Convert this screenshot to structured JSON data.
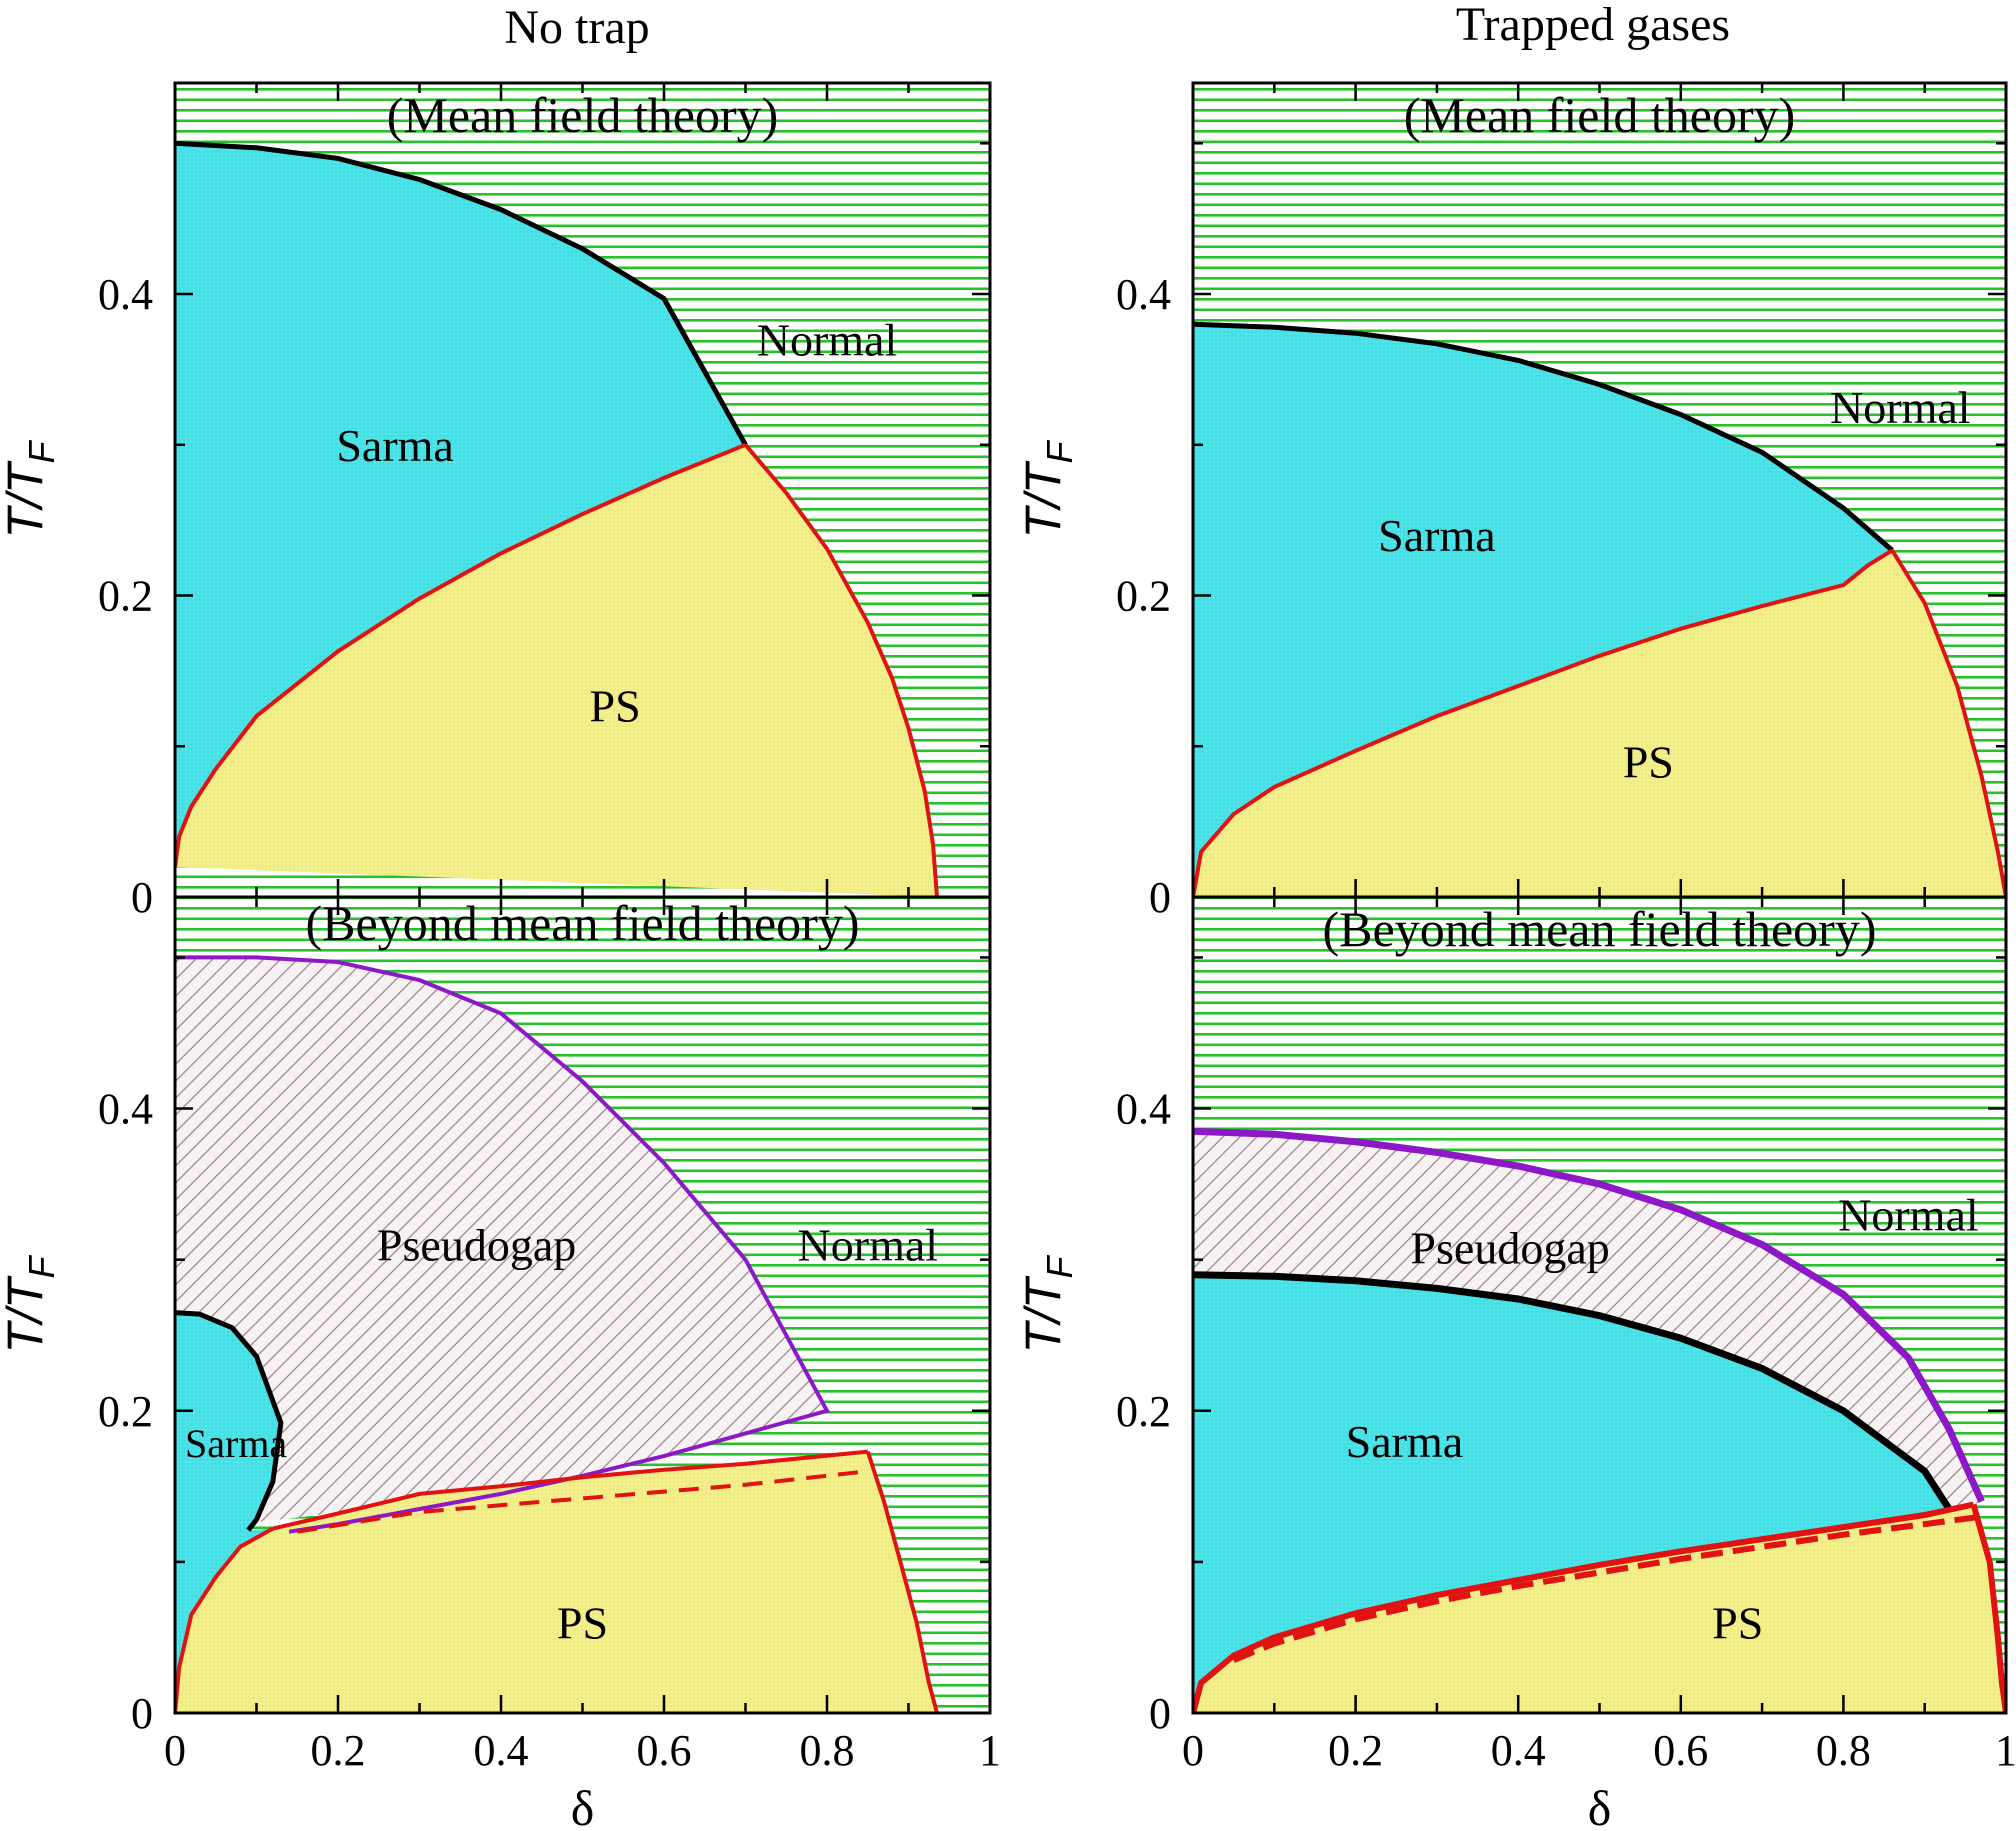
{
  "figure": {
    "column_titles": [
      "No trap",
      "Trapped gases"
    ]
  },
  "colors": {
    "normal_green": "#27c22a",
    "sarma_cyan": "#44e0e6",
    "ps_yellow": "#f2ef8c",
    "pseudogap_hatch": "#9b7f86",
    "red_line": "#e01212",
    "purple_line": "#8c18c8",
    "black_line": "#000000"
  },
  "chart_data": [
    {
      "type": "area",
      "panel": "top-left",
      "title": "(Mean field theory)",
      "xlabel": "",
      "ylabel": "T/T_F",
      "ylabel_main": "T/T",
      "ylabel_sub": "F",
      "xlim": [
        0,
        1
      ],
      "ylim": [
        0,
        0.54
      ],
      "yticks": [
        "0",
        "0.2",
        "0.4"
      ],
      "xticks": [],
      "region_labels": [
        {
          "text": "Normal",
          "x": 0.8,
          "y": 0.37
        },
        {
          "text": "Sarma",
          "x": 0.27,
          "y": 0.3
        },
        {
          "text": "PS",
          "x": 0.54,
          "y": 0.127
        }
      ],
      "series": [
        {
          "name": "black",
          "style": "solid",
          "x": [
            0,
            0.1,
            0.2,
            0.3,
            0.4,
            0.5,
            0.6,
            0.7
          ],
          "y": [
            0.5,
            0.497,
            0.49,
            0.476,
            0.456,
            0.43,
            0.397,
            0.3
          ]
        },
        {
          "name": "red-lower",
          "style": "solid",
          "x": [
            0,
            0.005,
            0.02,
            0.05,
            0.1,
            0.2,
            0.3,
            0.4,
            0.5,
            0.6,
            0.7
          ],
          "y": [
            0.02,
            0.04,
            0.06,
            0.085,
            0.12,
            0.163,
            0.198,
            0.228,
            0.254,
            0.278,
            0.3
          ]
        },
        {
          "name": "red-right",
          "style": "solid",
          "x": [
            0.7,
            0.75,
            0.8,
            0.85,
            0.88,
            0.9,
            0.92,
            0.93,
            0.935
          ],
          "y": [
            0.3,
            0.268,
            0.231,
            0.182,
            0.145,
            0.112,
            0.07,
            0.035,
            0
          ]
        }
      ]
    },
    {
      "type": "area",
      "panel": "top-right",
      "title": "(Mean field theory)",
      "xlabel": "",
      "ylabel": "T/T_F",
      "ylabel_main": "T/T",
      "ylabel_sub": "F",
      "xlim": [
        0,
        1
      ],
      "ylim": [
        0,
        0.54
      ],
      "yticks": [
        "0",
        "0.2",
        "0.4"
      ],
      "xticks": [],
      "region_labels": [
        {
          "text": "Normal",
          "x": 0.87,
          "y": 0.325
        },
        {
          "text": "Sarma",
          "x": 0.3,
          "y": 0.24
        },
        {
          "text": "PS",
          "x": 0.56,
          "y": 0.09
        }
      ],
      "series": [
        {
          "name": "black",
          "style": "solid",
          "x": [
            0,
            0.1,
            0.2,
            0.3,
            0.4,
            0.5,
            0.6,
            0.7,
            0.8,
            0.86
          ],
          "y": [
            0.38,
            0.378,
            0.374,
            0.367,
            0.356,
            0.34,
            0.32,
            0.295,
            0.258,
            0.23
          ]
        },
        {
          "name": "red-lower",
          "style": "solid",
          "x": [
            0,
            0.01,
            0.05,
            0.1,
            0.2,
            0.3,
            0.4,
            0.5,
            0.6,
            0.7,
            0.8,
            0.83,
            0.86
          ],
          "y": [
            0,
            0.03,
            0.055,
            0.073,
            0.097,
            0.12,
            0.14,
            0.16,
            0.178,
            0.193,
            0.207,
            0.22,
            0.23
          ]
        },
        {
          "name": "red-right",
          "style": "solid",
          "x": [
            0.86,
            0.9,
            0.94,
            0.97,
            0.99,
            1.0
          ],
          "y": [
            0.23,
            0.195,
            0.14,
            0.08,
            0.03,
            0
          ]
        }
      ]
    },
    {
      "type": "area",
      "panel": "bottom-left",
      "title": "(Beyond mean field theory)",
      "xlabel": "δ",
      "ylabel": "T/T_F",
      "ylabel_main": "T/T",
      "ylabel_sub": "F",
      "xlim": [
        0,
        1
      ],
      "ylim": [
        0,
        0.54
      ],
      "yticks": [
        "0",
        "0.2",
        "0.4"
      ],
      "xticks": [
        "0",
        "0.2",
        "0.4",
        "0.6",
        "0.8",
        "1"
      ],
      "region_labels": [
        {
          "text": "Normal",
          "x": 0.85,
          "y": 0.31
        },
        {
          "text": "Pseudogap",
          "x": 0.37,
          "y": 0.31
        },
        {
          "text": "Sarma",
          "x": 0.075,
          "y": 0.18
        },
        {
          "text": "PS",
          "x": 0.5,
          "y": 0.06
        }
      ],
      "series": [
        {
          "name": "purple",
          "style": "solid",
          "x": [
            0,
            0.1,
            0.2,
            0.3,
            0.4,
            0.5,
            0.6,
            0.7,
            0.8,
            0.7,
            0.6,
            0.5,
            0.4,
            0.3,
            0.2,
            0.14
          ],
          "y": [
            0.5,
            0.5,
            0.497,
            0.485,
            0.463,
            0.418,
            0.364,
            0.3,
            0.2,
            0.185,
            0.17,
            0.157,
            0.145,
            0.135,
            0.125,
            0.12
          ]
        },
        {
          "name": "black",
          "style": "solid",
          "x": [
            0,
            0.03,
            0.07,
            0.1,
            0.13,
            0.12,
            0.1,
            0.09
          ],
          "y": [
            0.265,
            0.264,
            0.255,
            0.236,
            0.192,
            0.153,
            0.128,
            0.121
          ]
        },
        {
          "name": "red-lower",
          "style": "solid",
          "x": [
            0,
            0.005,
            0.02,
            0.05,
            0.08,
            0.12
          ],
          "y": [
            0,
            0.03,
            0.065,
            0.09,
            0.11,
            0.122
          ]
        },
        {
          "name": "red-upper",
          "style": "solid",
          "x": [
            0.12,
            0.2,
            0.3,
            0.4,
            0.5,
            0.6,
            0.7,
            0.85
          ],
          "y": [
            0.122,
            0.132,
            0.145,
            0.15,
            0.156,
            0.161,
            0.165,
            0.173
          ]
        },
        {
          "name": "red-right",
          "style": "solid",
          "x": [
            0.85,
            0.87,
            0.89,
            0.91,
            0.925,
            0.935
          ],
          "y": [
            0.173,
            0.14,
            0.1,
            0.06,
            0.02,
            0
          ]
        },
        {
          "name": "red-dashed",
          "style": "dashed",
          "x": [
            0.15,
            0.3,
            0.5,
            0.7,
            0.85
          ],
          "y": [
            0.12,
            0.133,
            0.142,
            0.151,
            0.16
          ]
        }
      ]
    },
    {
      "type": "area",
      "panel": "bottom-right",
      "title": "(Beyond mean field theory)",
      "xlabel": "δ",
      "ylabel": "T/T_F",
      "ylabel_main": "T/T",
      "ylabel_sub": "F",
      "xlim": [
        0,
        1
      ],
      "ylim": [
        0,
        0.54
      ],
      "yticks": [
        "0",
        "0.2",
        "0.4"
      ],
      "xticks": [
        "0",
        "0.2",
        "0.4",
        "0.6",
        "0.8",
        "1"
      ],
      "region_labels": [
        {
          "text": "Normal",
          "x": 0.88,
          "y": 0.33
        },
        {
          "text": "Pseudogap",
          "x": 0.39,
          "y": 0.308
        },
        {
          "text": "Sarma",
          "x": 0.26,
          "y": 0.18
        },
        {
          "text": "PS",
          "x": 0.67,
          "y": 0.06
        }
      ],
      "series": [
        {
          "name": "purple",
          "style": "solid",
          "x": [
            0,
            0.1,
            0.2,
            0.3,
            0.4,
            0.5,
            0.6,
            0.7,
            0.8,
            0.88,
            0.93,
            0.97
          ],
          "y": [
            0.385,
            0.383,
            0.378,
            0.371,
            0.362,
            0.35,
            0.333,
            0.31,
            0.277,
            0.235,
            0.188,
            0.14
          ]
        },
        {
          "name": "black",
          "style": "solid",
          "x": [
            0,
            0.1,
            0.2,
            0.3,
            0.4,
            0.5,
            0.6,
            0.7,
            0.8,
            0.9,
            0.93
          ],
          "y": [
            0.29,
            0.289,
            0.286,
            0.281,
            0.274,
            0.263,
            0.248,
            0.228,
            0.2,
            0.16,
            0.135
          ]
        },
        {
          "name": "red-lower",
          "style": "solid",
          "x": [
            0,
            0.01,
            0.05,
            0.1,
            0.2,
            0.3,
            0.4,
            0.5,
            0.6,
            0.7,
            0.8,
            0.9,
            0.96
          ],
          "y": [
            0,
            0.02,
            0.038,
            0.05,
            0.066,
            0.078,
            0.088,
            0.098,
            0.107,
            0.115,
            0.123,
            0.131,
            0.138
          ]
        },
        {
          "name": "red-right",
          "style": "solid",
          "x": [
            0.96,
            0.98,
            0.99,
            0.995,
            1.0
          ],
          "y": [
            0.138,
            0.1,
            0.05,
            0.02,
            0
          ]
        },
        {
          "name": "red-dashed",
          "style": "dashed",
          "x": [
            0.05,
            0.1,
            0.2,
            0.3,
            0.4,
            0.5,
            0.6,
            0.7,
            0.8,
            0.9,
            0.97
          ],
          "y": [
            0.035,
            0.046,
            0.062,
            0.074,
            0.084,
            0.093,
            0.102,
            0.11,
            0.118,
            0.125,
            0.13
          ]
        }
      ]
    }
  ]
}
